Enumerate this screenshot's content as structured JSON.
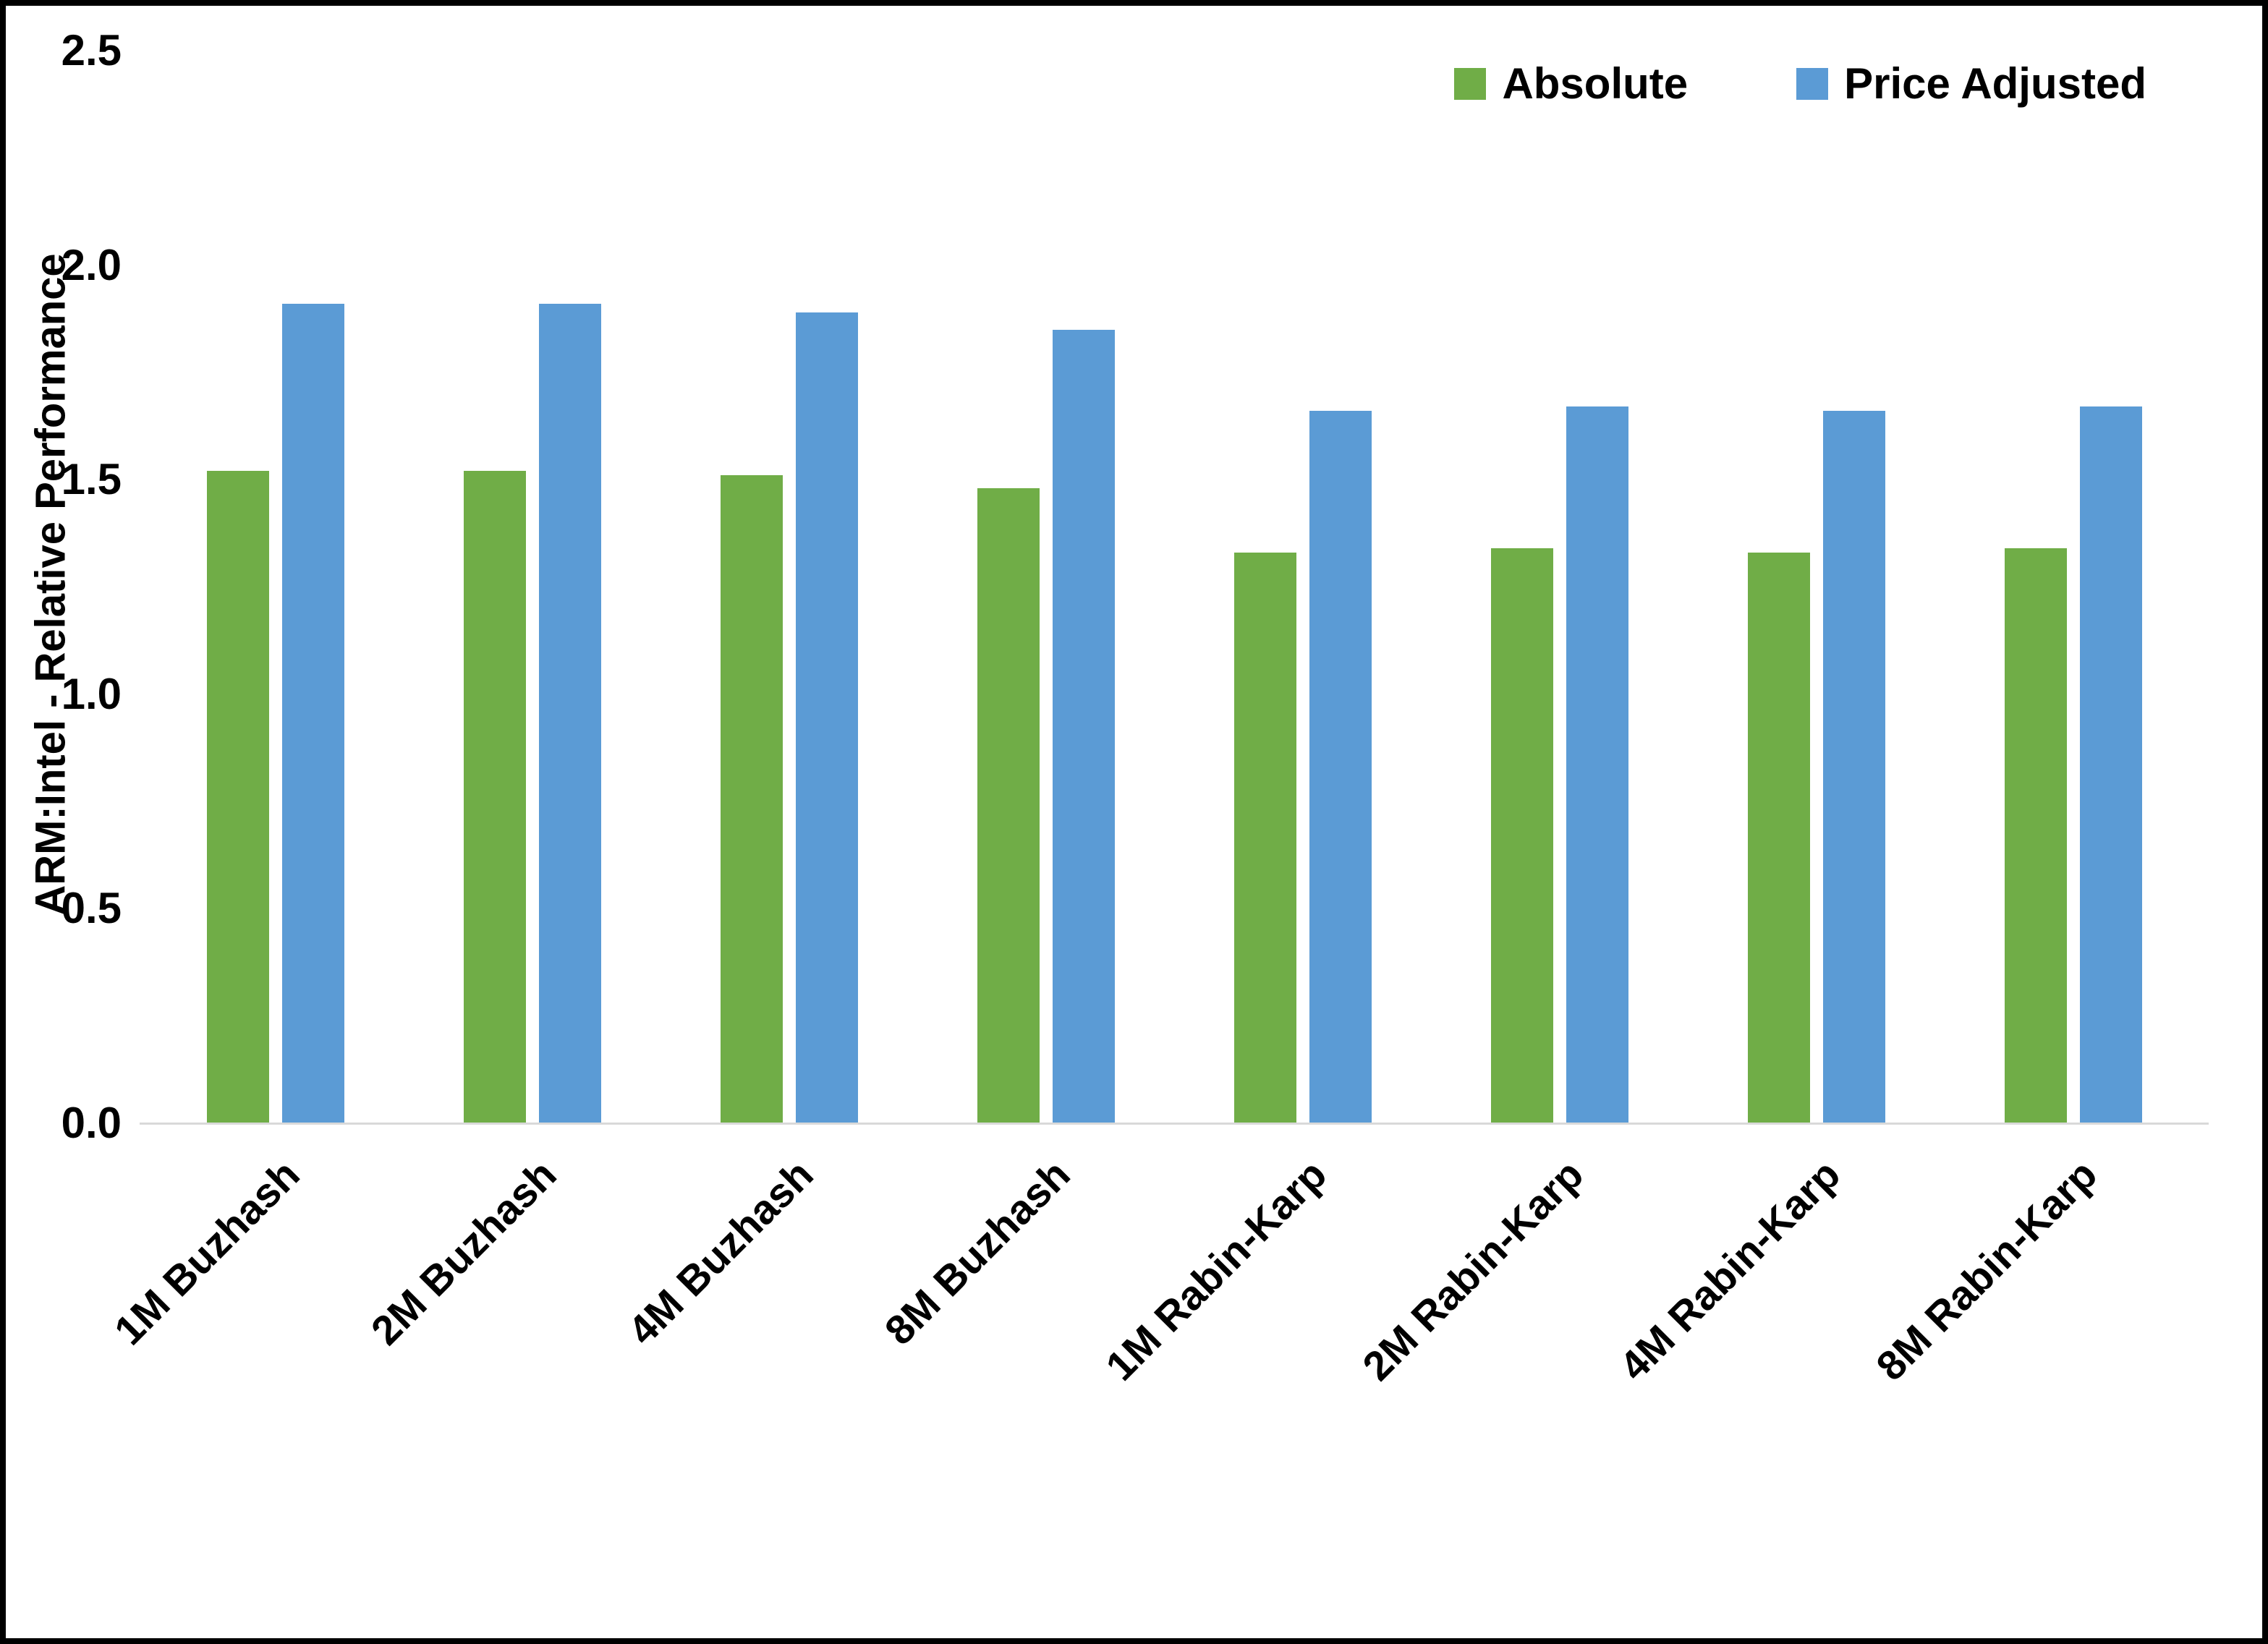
{
  "chart_data": {
    "type": "bar",
    "title": "",
    "xlabel": "",
    "ylabel": "ARM:Intel - Relative Performance",
    "ylim": [
      0,
      2.5
    ],
    "yticks": [
      "0.0",
      "0.5",
      "1.0",
      "1.5",
      "2.0",
      "2.5"
    ],
    "grid": false,
    "legend_position": "top-right",
    "categories": [
      "1M Buzhash",
      "2M Buzhash",
      "4M Buzhash",
      "8M Buzhash",
      "1M Rabin-Karp",
      "2M Rabin-Karp",
      "4M Rabin-Karp",
      "8M Rabin-Karp"
    ],
    "series": [
      {
        "name": "Absolute",
        "color": "#70AD47",
        "values": [
          1.52,
          1.52,
          1.51,
          1.48,
          1.33,
          1.34,
          1.33,
          1.34
        ]
      },
      {
        "name": "Price Adjusted",
        "color": "#5B9BD5",
        "values": [
          1.91,
          1.91,
          1.89,
          1.85,
          1.66,
          1.67,
          1.66,
          1.67
        ]
      }
    ]
  }
}
